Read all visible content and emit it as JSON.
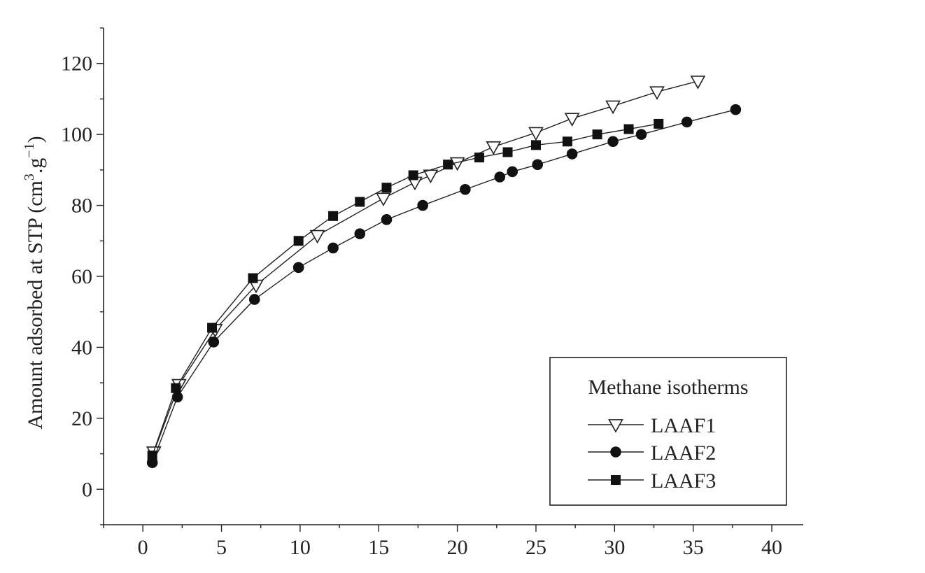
{
  "chart_data": {
    "type": "line",
    "title": "",
    "xlabel": "",
    "ylabel": "Amount adsorbed at STP (cm³.g⁻¹)",
    "ylabel_parts": {
      "main": "Amount adsorbed at STP (cm",
      "sup1": "3",
      "mid": ".g",
      "sup2": "−1",
      "end": ")"
    },
    "xlim": [
      -2.5,
      42
    ],
    "ylim": [
      -10,
      130
    ],
    "xticks": [
      0,
      5,
      10,
      15,
      20,
      25,
      30,
      35,
      40
    ],
    "xtick_labels": [
      "0",
      "5",
      "10",
      "15",
      "20",
      "25",
      "30",
      "35",
      "40"
    ],
    "yticks": [
      0,
      20,
      40,
      60,
      80,
      100,
      120
    ],
    "ytick_labels": [
      "0",
      "20",
      "40",
      "60",
      "80",
      "100",
      "120"
    ],
    "grid": false,
    "legend": {
      "title": "Methane isotherms",
      "position": "bottom-right"
    },
    "series": [
      {
        "name": "LAAF1",
        "marker": "triangle-down-open",
        "x": [
          0.7,
          2.3,
          4.6,
          7.2,
          11.1,
          15.3,
          17.3,
          18.3,
          20.0,
          22.3,
          25.0,
          27.3,
          29.9,
          32.7,
          35.3
        ],
        "y": [
          10.5,
          29.5,
          45.0,
          57.5,
          71.5,
          82.0,
          86.5,
          88.5,
          92.0,
          96.5,
          100.5,
          104.5,
          108.0,
          112.0,
          115.0
        ]
      },
      {
        "name": "LAAF2",
        "marker": "circle-filled",
        "x": [
          0.6,
          2.2,
          4.5,
          7.1,
          9.9,
          12.1,
          13.8,
          15.5,
          17.8,
          20.5,
          22.7,
          23.5,
          25.1,
          27.3,
          29.9,
          31.7,
          34.6,
          37.7
        ],
        "y": [
          7.5,
          26.0,
          41.5,
          53.5,
          62.5,
          68.0,
          72.0,
          76.0,
          80.0,
          84.5,
          88.0,
          89.5,
          91.5,
          94.5,
          98.0,
          100.0,
          103.5,
          107.0
        ]
      },
      {
        "name": "LAAF3",
        "marker": "square-filled",
        "x": [
          0.6,
          2.1,
          4.4,
          7.0,
          9.9,
          12.1,
          13.8,
          15.5,
          17.2,
          19.4,
          21.4,
          23.2,
          25.0,
          27.0,
          28.9,
          30.9,
          32.8
        ],
        "y": [
          9.5,
          28.5,
          45.5,
          59.5,
          70.0,
          77.0,
          81.0,
          85.0,
          88.5,
          91.5,
          93.5,
          95.0,
          97.0,
          98.0,
          100.0,
          101.5,
          103.0
        ]
      }
    ]
  }
}
